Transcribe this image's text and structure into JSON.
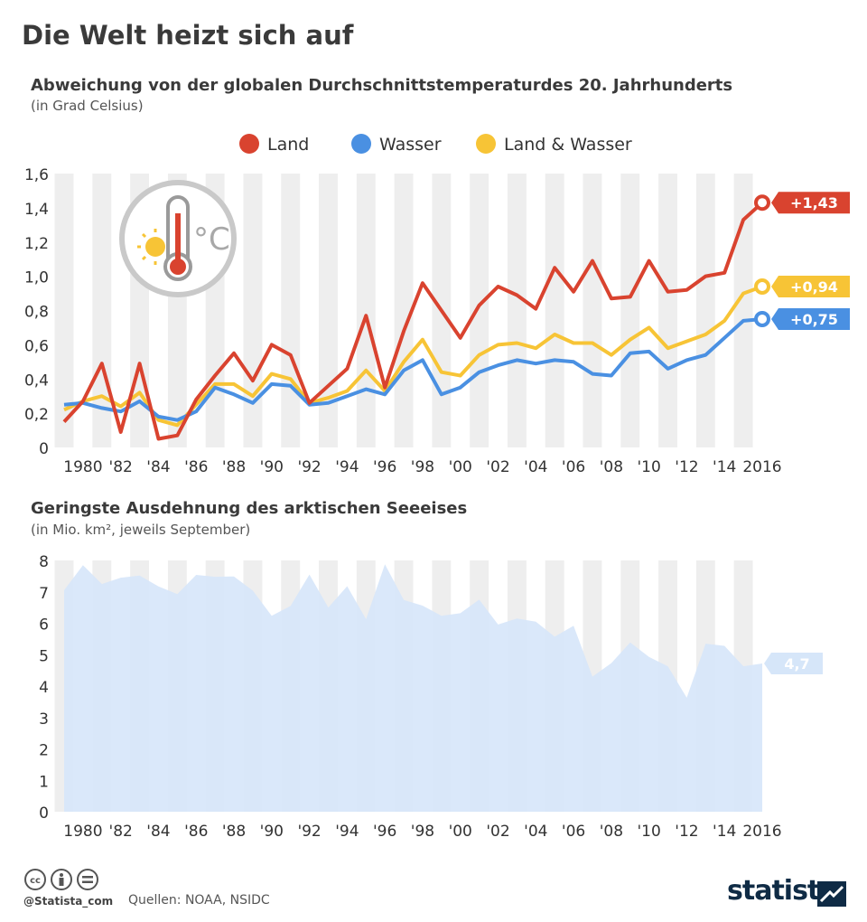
{
  "title": "Die Welt heizt sich auf",
  "footer": {
    "handle": "@Statista_com",
    "source": "Quellen: NOAA, NSIDC",
    "logo": "statista"
  },
  "chart_data": [
    {
      "type": "line",
      "title": "Abweichung von der globalen Durchschnittstemperaturdes 20. Jahrhunderts",
      "subtitle": "(in Grad Celsius)",
      "ylim": [
        0,
        1.6
      ],
      "yticks": [
        "0",
        "0,2",
        "0,4",
        "0,6",
        "0,8",
        "1,0",
        "1,2",
        "1,4",
        "1,6"
      ],
      "x": [
        1979,
        1980,
        1981,
        1982,
        1983,
        1984,
        1985,
        1986,
        1987,
        1988,
        1989,
        1990,
        1991,
        1992,
        1993,
        1994,
        1995,
        1996,
        1997,
        1998,
        1999,
        2000,
        2001,
        2002,
        2003,
        2004,
        2005,
        2006,
        2007,
        2008,
        2009,
        2010,
        2011,
        2012,
        2013,
        2014,
        2015,
        2016
      ],
      "xticks": [
        {
          "x": 1980,
          "label": "1980"
        },
        {
          "x": 1982,
          "label": "'82"
        },
        {
          "x": 1984,
          "label": "'84"
        },
        {
          "x": 1986,
          "label": "'86"
        },
        {
          "x": 1988,
          "label": "'88"
        },
        {
          "x": 1990,
          "label": "'90"
        },
        {
          "x": 1992,
          "label": "'92"
        },
        {
          "x": 1994,
          "label": "'94"
        },
        {
          "x": 1996,
          "label": "'96"
        },
        {
          "x": 1998,
          "label": "'98"
        },
        {
          "x": 2000,
          "label": "'00"
        },
        {
          "x": 2002,
          "label": "'02"
        },
        {
          "x": 2004,
          "label": "'04"
        },
        {
          "x": 2006,
          "label": "'06"
        },
        {
          "x": 2008,
          "label": "'08"
        },
        {
          "x": 2010,
          "label": "'10"
        },
        {
          "x": 2012,
          "label": "'12"
        },
        {
          "x": 2014,
          "label": "'14"
        },
        {
          "x": 2016,
          "label": "2016"
        }
      ],
      "legend_position": "top",
      "series": [
        {
          "name": "Land",
          "color": "#d9432f",
          "end_label": "+1,43",
          "values": [
            0.15,
            0.27,
            0.49,
            0.09,
            0.49,
            0.05,
            0.07,
            0.28,
            0.42,
            0.55,
            0.39,
            0.6,
            0.54,
            0.26,
            0.36,
            0.46,
            0.77,
            0.35,
            0.68,
            0.96,
            0.8,
            0.64,
            0.83,
            0.94,
            0.89,
            0.81,
            1.05,
            0.91,
            1.09,
            0.87,
            0.88,
            1.09,
            0.91,
            0.92,
            1.0,
            1.02,
            1.33,
            1.43
          ]
        },
        {
          "name": "Wasser",
          "color": "#4a90e2",
          "end_label": "+0,75",
          "values": [
            0.25,
            0.26,
            0.23,
            0.21,
            0.27,
            0.18,
            0.16,
            0.21,
            0.35,
            0.31,
            0.26,
            0.37,
            0.36,
            0.25,
            0.26,
            0.3,
            0.34,
            0.31,
            0.45,
            0.51,
            0.31,
            0.35,
            0.44,
            0.48,
            0.51,
            0.49,
            0.51,
            0.5,
            0.43,
            0.42,
            0.55,
            0.56,
            0.46,
            0.51,
            0.54,
            0.64,
            0.74,
            0.75
          ]
        },
        {
          "name": "Land & Wasser",
          "color": "#f7c436",
          "end_label": "+0,94",
          "values": [
            0.22,
            0.27,
            0.3,
            0.24,
            0.32,
            0.16,
            0.13,
            0.25,
            0.37,
            0.37,
            0.3,
            0.43,
            0.4,
            0.26,
            0.29,
            0.33,
            0.45,
            0.33,
            0.5,
            0.63,
            0.44,
            0.42,
            0.54,
            0.6,
            0.61,
            0.58,
            0.66,
            0.61,
            0.61,
            0.54,
            0.63,
            0.7,
            0.58,
            0.62,
            0.66,
            0.74,
            0.9,
            0.94
          ]
        }
      ]
    },
    {
      "type": "area",
      "title": "Geringste Ausdehnung des arktischen Seeeises",
      "subtitle": "(in Mio. km², jeweils September)",
      "ylim": [
        0,
        8
      ],
      "yticks": [
        "0",
        "1",
        "2",
        "3",
        "4",
        "5",
        "6",
        "7",
        "8"
      ],
      "x": [
        1979,
        1980,
        1981,
        1982,
        1983,
        1984,
        1985,
        1986,
        1987,
        1988,
        1989,
        1990,
        1991,
        1992,
        1993,
        1994,
        1995,
        1996,
        1997,
        1998,
        1999,
        2000,
        2001,
        2002,
        2003,
        2004,
        2005,
        2006,
        2007,
        2008,
        2009,
        2010,
        2011,
        2012,
        2013,
        2014,
        2015,
        2016
      ],
      "series": [
        {
          "color": "#d6e6f9",
          "end_label": "4,7",
          "values": [
            7.05,
            7.85,
            7.25,
            7.45,
            7.52,
            7.17,
            6.93,
            7.54,
            7.48,
            7.49,
            7.04,
            6.24,
            6.55,
            7.55,
            6.5,
            7.18,
            6.13,
            7.88,
            6.74,
            6.56,
            6.24,
            6.32,
            6.75,
            5.96,
            6.15,
            6.05,
            5.57,
            5.92,
            4.3,
            4.73,
            5.39,
            4.93,
            4.63,
            3.63,
            5.35,
            5.28,
            4.63,
            4.72
          ]
        }
      ]
    }
  ]
}
